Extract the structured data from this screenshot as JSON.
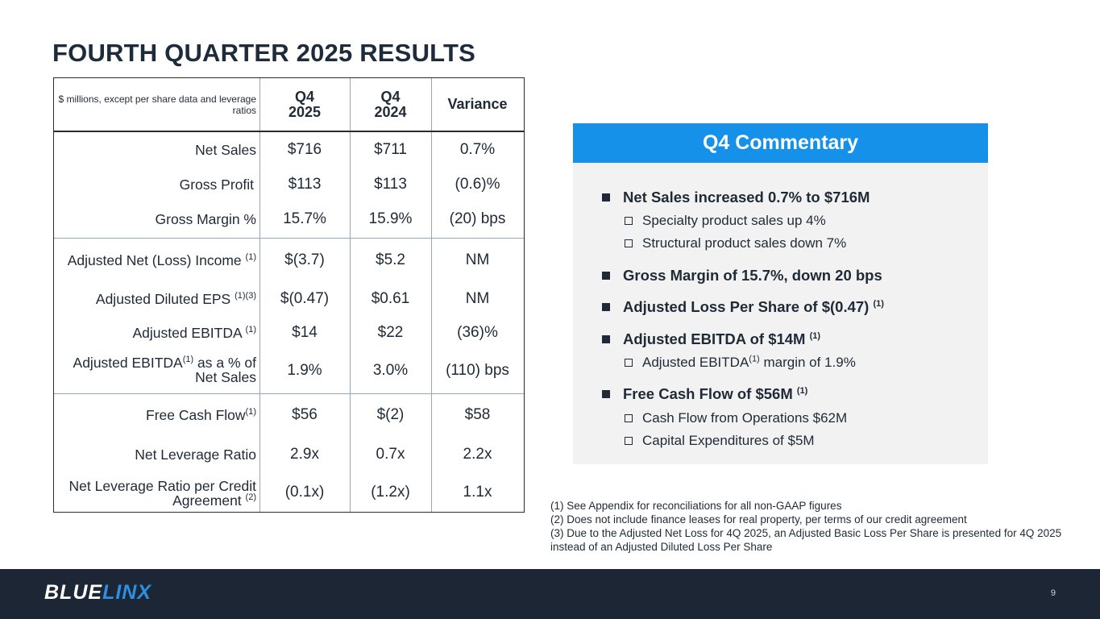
{
  "title": "FOURTH QUARTER 2025 RESULTS",
  "table": {
    "unit_note": "$ millions, except per share data and leverage ratios",
    "headers": [
      {
        "line1": "Q4",
        "line2": "2025"
      },
      {
        "line1": "Q4",
        "line2": "2024"
      },
      {
        "line1": "Variance",
        "line2": ""
      }
    ],
    "rows": [
      {
        "label": "Net Sales",
        "sup": "",
        "label2": "",
        "q4_2025": "$716",
        "q4_2024": "$711",
        "variance": "0.7%"
      },
      {
        "label": "Gross Profit",
        "sup": "",
        "label2": "",
        "q4_2025": "$113",
        "q4_2024": "$113",
        "variance": "(0.6)%"
      },
      {
        "label": "Gross Margin %",
        "sup": "",
        "label2": "",
        "q4_2025": "15.7%",
        "q4_2024": "15.9%",
        "variance": "(20) bps"
      },
      {
        "label": "Adjusted Net (Loss) Income",
        "sup": "(1)",
        "label2": "",
        "q4_2025": "$(3.7)",
        "q4_2024": "$5.2",
        "variance": "NM"
      },
      {
        "label": "Adjusted Diluted EPS",
        "sup": "(1)(3)",
        "label2": "",
        "q4_2025": "$(0.47)",
        "q4_2024": "$0.61",
        "variance": "NM"
      },
      {
        "label": "Adjusted EBITDA",
        "sup": "(1)",
        "label2": "",
        "q4_2025": "$14",
        "q4_2024": "$22",
        "variance": "(36)%"
      },
      {
        "label": "Adjusted EBITDA",
        "sup": "(1)",
        "label_suffix": "as a % of",
        "label2": "Net Sales",
        "q4_2025": "1.9%",
        "q4_2024": "3.0%",
        "variance": "(110) bps"
      },
      {
        "label": "Free Cash Flow",
        "sup": "(1)",
        "label2": "",
        "q4_2025": "$56",
        "q4_2024": "$(2)",
        "variance": "$58"
      },
      {
        "label": "Net Leverage Ratio",
        "sup": "",
        "label2": "",
        "q4_2025": "2.9x",
        "q4_2024": "0.7x",
        "variance": "2.2x"
      },
      {
        "label": "Net Leverage Ratio per Credit",
        "sup": "(2)",
        "label2": "Agreement",
        "q4_2025": "(0.1x)",
        "q4_2024": "(1.2x)",
        "variance": "1.1x"
      }
    ]
  },
  "commentary": {
    "heading": "Q4 Commentary",
    "items": [
      {
        "text": "Net Sales increased 0.7% to $716M",
        "sup": ""
      },
      {
        "text": "Specialty product sales up 4%",
        "sup": ""
      },
      {
        "text": "Structural product sales down 7%",
        "sup": ""
      },
      {
        "text": "Gross Margin of 15.7%, down 20 bps",
        "sup": ""
      },
      {
        "text": "Adjusted Loss Per Share of $(0.47)",
        "sup": "(1)"
      },
      {
        "text": "Adjusted EBITDA of $14M",
        "sup": "(1)"
      },
      {
        "text_a": "Adjusted EBITDA",
        "sup": "(1)",
        "text_b": "margin of 1.9%"
      },
      {
        "text": "Free Cash Flow of $56M",
        "sup": "(1)"
      },
      {
        "text": "Cash Flow from Operations $62M",
        "sup": ""
      },
      {
        "text": "Capital Expenditures of $5M",
        "sup": ""
      }
    ]
  },
  "footnotes": [
    "(1) See Appendix for reconciliations for all non-GAAP figures",
    "(2) Does not include finance leases for real property, per terms of our credit agreement",
    "(3) Due to the Adjusted Net Loss for 4Q 2025, an Adjusted Basic Loss Per Share is presented for 4Q 2025",
    "instead of an Adjusted Diluted Loss Per Share"
  ],
  "footer": {
    "logo_part1": "BLUE",
    "logo_part2": "LINX",
    "page_number": "9"
  },
  "colors": {
    "accent_blue": "#1591ea",
    "footer_bg": "#1c2635",
    "text_dark": "#1f2a36"
  }
}
